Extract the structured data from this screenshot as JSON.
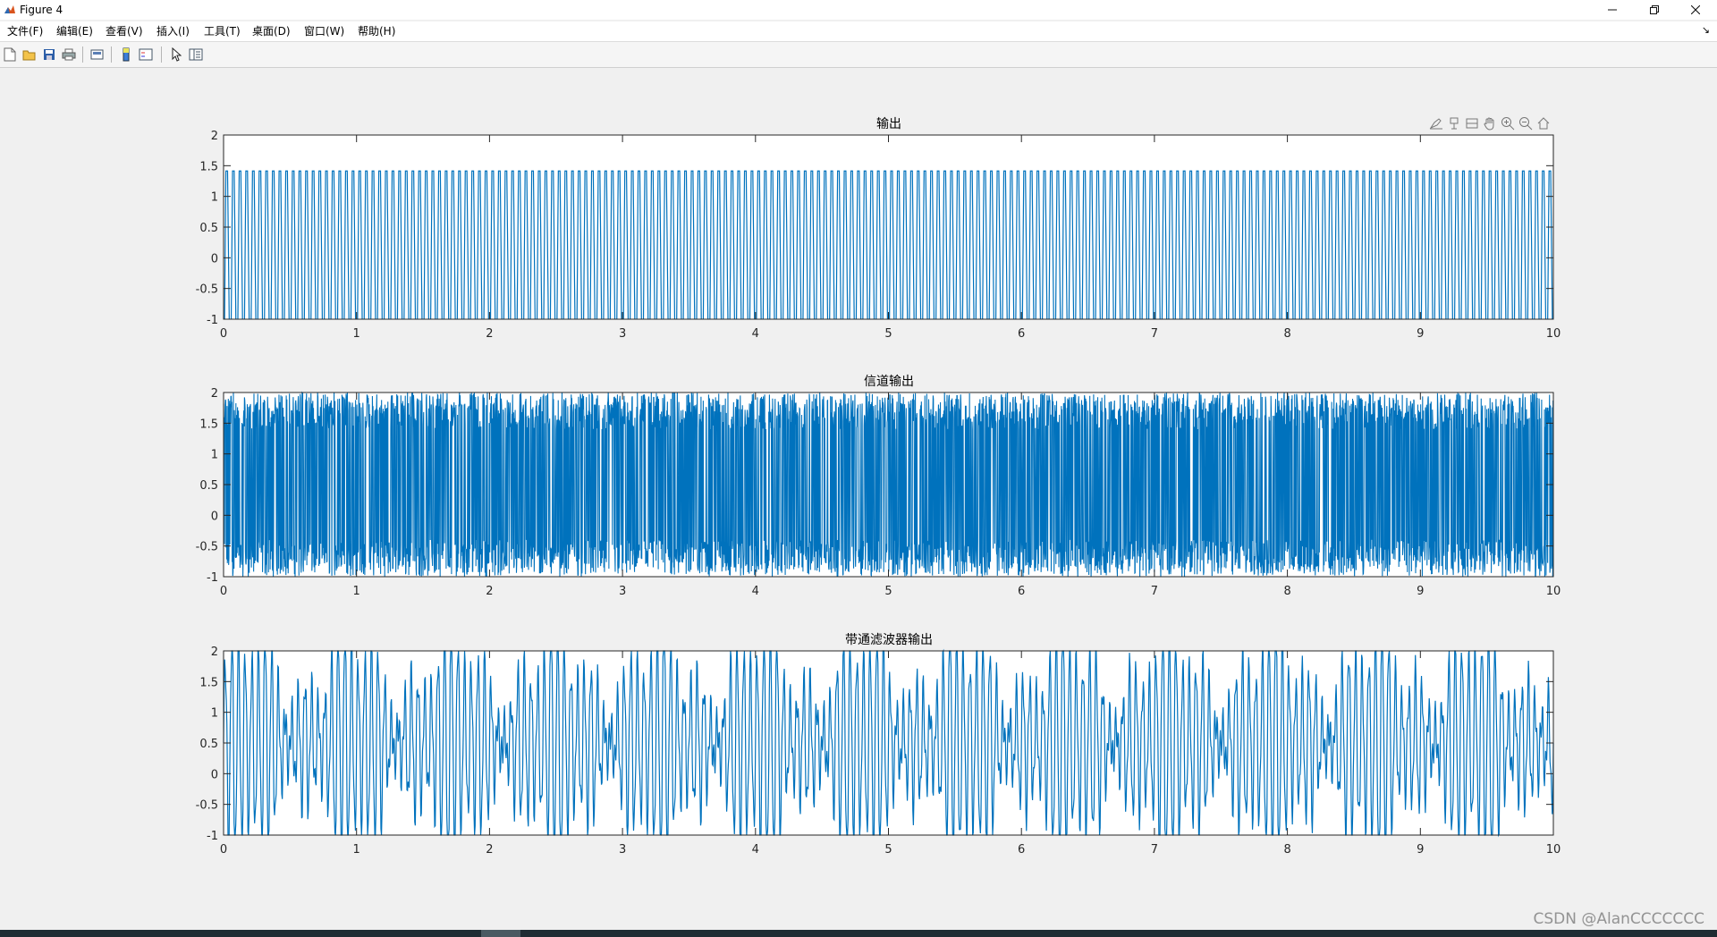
{
  "window": {
    "title": "Figure 4"
  },
  "menu": [
    {
      "id": "file",
      "label": "文件(F)"
    },
    {
      "id": "edit",
      "label": "编辑(E)"
    },
    {
      "id": "view",
      "label": "查看(V)"
    },
    {
      "id": "insert",
      "label": "插入(I)"
    },
    {
      "id": "tools",
      "label": "工具(T)"
    },
    {
      "id": "desktop",
      "label": "桌面(D)"
    },
    {
      "id": "window",
      "label": "窗口(W)"
    },
    {
      "id": "help",
      "label": "帮助(H)"
    }
  ],
  "toolbar_icons": [
    "new-figure-icon",
    "open-folder-icon",
    "save-icon",
    "print-icon",
    "print-preview-icon",
    "colorbar-icon",
    "legend-icon",
    "edit-plot-arrow-icon",
    "property-inspector-icon"
  ],
  "axes_toolbar_icons": [
    "brush-icon",
    "data-tips-icon",
    "link-icon",
    "pan-hand-icon",
    "zoom-in-icon",
    "zoom-out-icon",
    "home-icon"
  ],
  "watermark": "CSDN @AlanCCCCCCC",
  "colors": {
    "line": "#0072bd",
    "figure_bg": "#f0f0f0",
    "axes_bg": "#ffffff"
  },
  "chart_data": [
    {
      "type": "line",
      "title": "输出",
      "xlabel": "",
      "ylabel": "",
      "xlim": [
        0,
        10
      ],
      "ylim": [
        -1,
        2
      ],
      "xticks": [
        0,
        1,
        2,
        3,
        4,
        5,
        6,
        7,
        8,
        9,
        10
      ],
      "yticks": [
        -1,
        -0.5,
        0,
        0.5,
        1,
        1.5,
        2
      ],
      "signal": {
        "kind": "square_like",
        "cycles_per_unit": 20,
        "high": 1.414,
        "low": -1
      },
      "grid": false
    },
    {
      "type": "line",
      "title": "信道输出",
      "xlabel": "",
      "ylabel": "",
      "xlim": [
        0,
        10
      ],
      "ylim": [
        -1,
        2
      ],
      "xticks": [
        0,
        1,
        2,
        3,
        4,
        5,
        6,
        7,
        8,
        9,
        10
      ],
      "yticks": [
        -1,
        -0.5,
        0,
        0.5,
        1,
        1.5,
        2
      ],
      "signal": {
        "kind": "dense_noise",
        "range": [
          -1,
          2
        ]
      },
      "grid": false
    },
    {
      "type": "line",
      "title": "带通滤波器输出",
      "xlabel": "",
      "ylabel": "",
      "xlim": [
        0,
        10
      ],
      "ylim": [
        -1,
        2
      ],
      "xticks": [
        0,
        1,
        2,
        3,
        4,
        5,
        6,
        7,
        8,
        9,
        10
      ],
      "yticks": [
        -1,
        -0.5,
        0,
        0.5,
        1,
        1.5,
        2
      ],
      "signal": {
        "kind": "filtered_oscillation",
        "cycles_per_unit": 20,
        "range": [
          -1,
          2
        ]
      },
      "grid": false
    }
  ]
}
